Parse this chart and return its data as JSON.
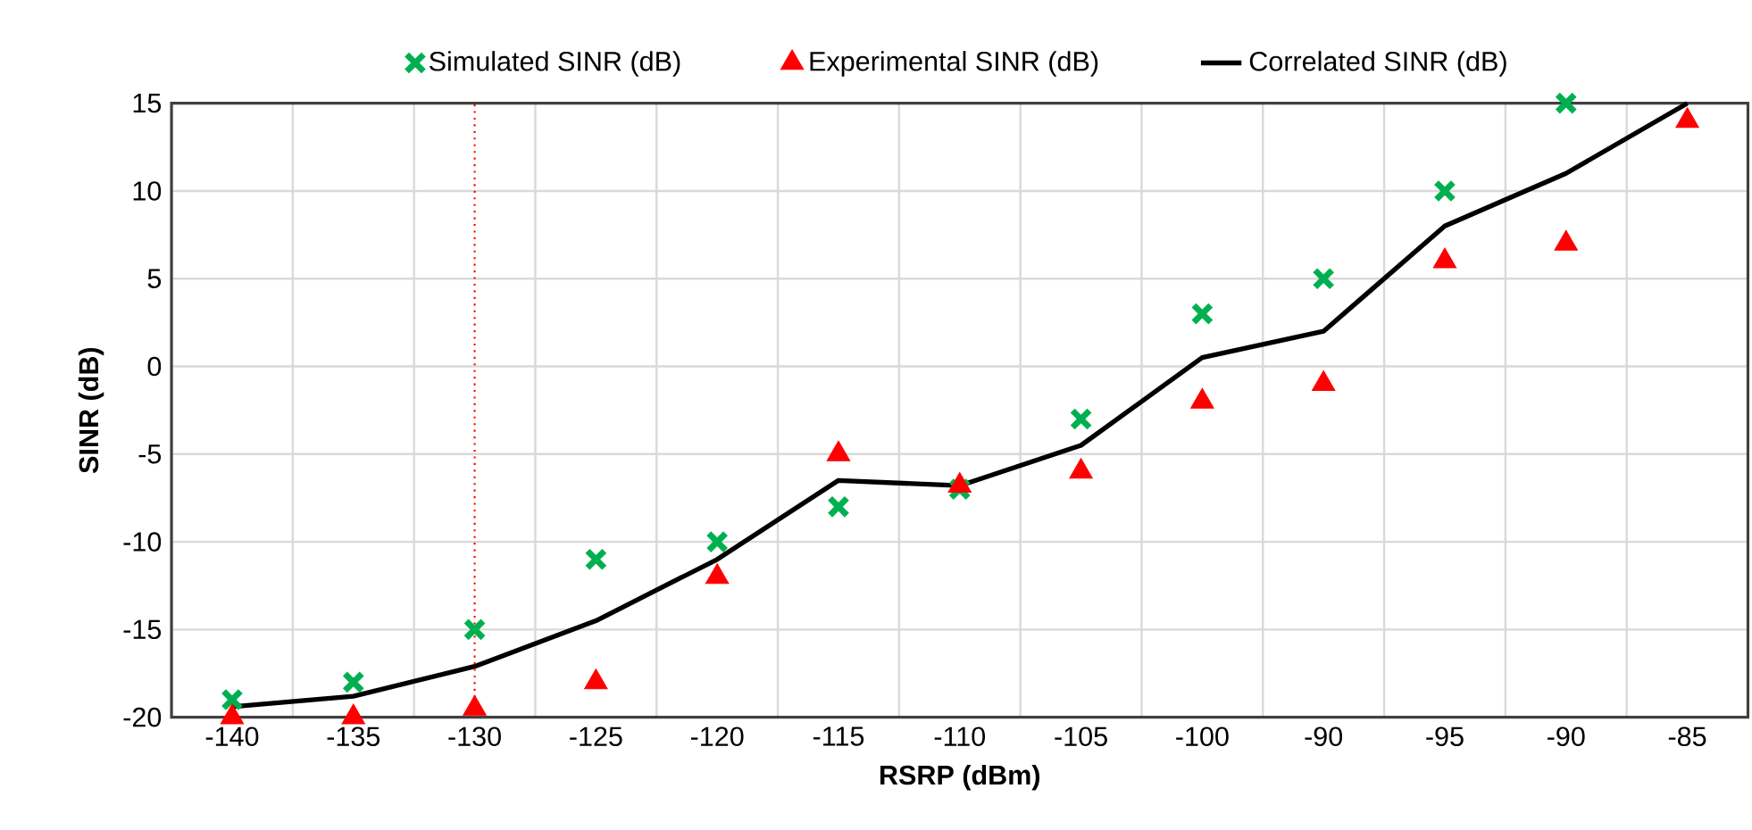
{
  "chart_data": {
    "type": "scatter",
    "xlabel": "RSRP (dBm)",
    "ylabel": "SINR (dB)",
    "categories": [
      "-140",
      "-135",
      "-130",
      "-125",
      "-120",
      "-115",
      "-110",
      "-105",
      "-100",
      "-90",
      "-95",
      "-90",
      "-85"
    ],
    "series": [
      {
        "name": "Simulated SINR (dB)",
        "marker": "cross",
        "color": "#00b050",
        "values": [
          -19,
          -18,
          -15,
          -11,
          -10,
          -8,
          -7,
          -3,
          3,
          5,
          10,
          15,
          null
        ]
      },
      {
        "name": "Experimental SINR (dB)",
        "marker": "triangle",
        "color": "#ff0000",
        "values": [
          -20,
          -20,
          -19.5,
          -18,
          -12,
          -5,
          -6.8,
          -6,
          -2,
          -1,
          6,
          7,
          14
        ]
      },
      {
        "name": "Correlated SINR (dB)",
        "type": "line",
        "marker": "none",
        "line_style": "solid",
        "color": "#000000",
        "values": [
          -19.4,
          -18.8,
          -17.1,
          -14.5,
          -11,
          -6.5,
          -6.8,
          -4.5,
          0.5,
          2,
          8,
          11,
          15
        ]
      }
    ],
    "ylim": [
      -20,
      15
    ],
    "yticks": [
      -20,
      -15,
      -10,
      -5,
      0,
      5,
      10,
      15
    ],
    "grid": true,
    "legend": "top",
    "ref_lines": [
      {
        "axis": "x",
        "value": "-130",
        "color": "#ff0000",
        "line_style": "dotted"
      }
    ]
  }
}
